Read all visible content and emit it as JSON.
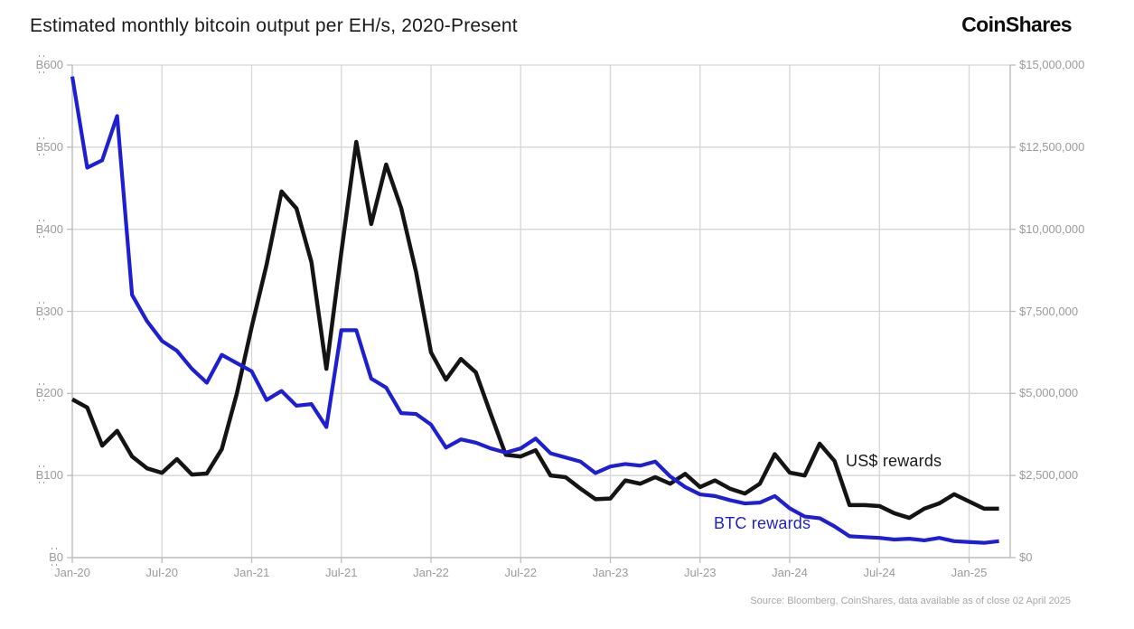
{
  "header": {
    "title": "Estimated monthly bitcoin output per EH/s, 2020-Present",
    "logo_text": "CoinShares"
  },
  "chart_data": {
    "type": "line",
    "title": "Estimated monthly bitcoin output per EH/s, 2020-Present",
    "grid": true,
    "x_axis": {
      "tick_labels": [
        "Jan-20",
        "Jul-20",
        "Jan-21",
        "Jul-21",
        "Jan-22",
        "Jul-22",
        "Jan-23",
        "Jul-23",
        "Jan-24",
        "Jul-24",
        "Jan-25"
      ],
      "months": [
        "Jan-20",
        "Feb-20",
        "Mar-20",
        "Apr-20",
        "May-20",
        "Jun-20",
        "Jul-20",
        "Aug-20",
        "Sep-20",
        "Oct-20",
        "Nov-20",
        "Dec-20",
        "Jan-21",
        "Feb-21",
        "Mar-21",
        "Apr-21",
        "May-21",
        "Jun-21",
        "Jul-21",
        "Aug-21",
        "Sep-21",
        "Oct-21",
        "Nov-21",
        "Dec-21",
        "Jan-22",
        "Feb-22",
        "Mar-22",
        "Apr-22",
        "May-22",
        "Jun-22",
        "Jul-22",
        "Aug-22",
        "Sep-22",
        "Oct-22",
        "Nov-22",
        "Dec-22",
        "Jan-23",
        "Feb-23",
        "Mar-23",
        "Apr-23",
        "May-23",
        "Jun-23",
        "Jul-23",
        "Aug-23",
        "Sep-23",
        "Oct-23",
        "Nov-23",
        "Dec-23",
        "Jan-24",
        "Feb-24",
        "Mar-24",
        "Apr-24",
        "May-24",
        "Jun-24",
        "Jul-24",
        "Aug-24",
        "Sep-24",
        "Oct-24",
        "Nov-24",
        "Dec-24",
        "Jan-25",
        "Feb-25",
        "Mar-25"
      ]
    },
    "left_axis": {
      "currency_symbol": "₿",
      "tick_labels": [
        "₿0",
        "₿100",
        "₿200",
        "₿300",
        "₿400",
        "₿500",
        "₿600"
      ],
      "tick_values": [
        0,
        100,
        200,
        300,
        400,
        500,
        600
      ],
      "min": 0,
      "max": 600
    },
    "right_axis": {
      "tick_labels": [
        "$0",
        "$2,500,000",
        "$5,000,000",
        "$7,500,000",
        "$10,000,000",
        "$12,500,000",
        "$15,000,000"
      ],
      "tick_values": [
        0,
        2500000,
        5000000,
        7500000,
        10000000,
        12500000,
        15000000
      ],
      "min": 0,
      "max": 15000000
    },
    "series": [
      {
        "name": "US$ rewards",
        "axis": "right",
        "color": "#141414",
        "values": [
          4820000,
          4570000,
          3410000,
          3860000,
          3080000,
          2720000,
          2580000,
          3000000,
          2530000,
          2560000,
          3300000,
          4980000,
          7020000,
          8920000,
          11150000,
          10630000,
          9000000,
          5750000,
          9300000,
          12660000,
          10160000,
          11970000,
          10650000,
          8700000,
          6250000,
          5420000,
          6050000,
          5640000,
          4370000,
          3130000,
          3080000,
          3270000,
          2500000,
          2450000,
          2100000,
          1780000,
          1800000,
          2350000,
          2250000,
          2450000,
          2250000,
          2550000,
          2150000,
          2350000,
          2100000,
          1950000,
          2250000,
          3150000,
          2590000,
          2500000,
          3470000,
          2940000,
          1600000,
          1600000,
          1570000,
          1350000,
          1210000,
          1490000,
          1650000,
          1930000,
          1710000,
          1490000,
          1490000
        ]
      },
      {
        "name": "BTC rewards",
        "axis": "left",
        "color": "#1f1fd2",
        "values": [
          586,
          475,
          484,
          538,
          320,
          288,
          264,
          252,
          230,
          213,
          247,
          237,
          227,
          192,
          203,
          185,
          187,
          159,
          277,
          277,
          218,
          207,
          176,
          175,
          162,
          134,
          144,
          140,
          133,
          128,
          133,
          145,
          127,
          122,
          117,
          103,
          111,
          114,
          112,
          117,
          99,
          86,
          77,
          75,
          70,
          66,
          67,
          75,
          60,
          50,
          48,
          38,
          26,
          25,
          24,
          22,
          23,
          21,
          24,
          20,
          19,
          18,
          20
        ]
      }
    ],
    "annotations": [
      {
        "text": "US$ rewards",
        "color": "#1a1a1a"
      },
      {
        "text": "BTC rewards",
        "color": "#1f1fd2"
      }
    ],
    "source_note": "Source: Bloomberg, CoinShares, data available as of close 02 April 2025",
    "colors": {
      "grid": "#d6d6d6",
      "spine": "#bcbcbc",
      "tick_text": "#9a9a9a"
    }
  }
}
